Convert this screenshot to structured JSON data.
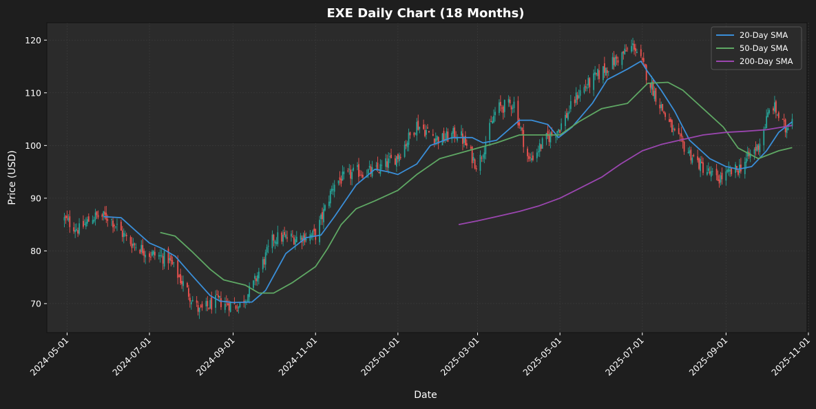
{
  "chart_data": {
    "type": "candlestick",
    "title": "EXE Daily Chart (18 Months)",
    "xlabel": "Date",
    "ylabel": "Price (USD)",
    "xlim": [
      "2024-04-16",
      "2025-10-31"
    ],
    "ylim": [
      64.5,
      123.3
    ],
    "yticks": [
      70,
      80,
      90,
      100,
      110,
      120
    ],
    "xticks": [
      "2024-05-01",
      "2024-07-01",
      "2024-09-01",
      "2024-11-01",
      "2025-01-01",
      "2025-03-01",
      "2025-05-01",
      "2025-07-01",
      "2025-09-01",
      "2025-11-01"
    ],
    "grid": true,
    "legend_position": "top-right",
    "colors": {
      "background": "#1e1e1e",
      "plot_background": "#2b2b2b",
      "grid": "#3a3a3a",
      "up": "#26a69a",
      "down": "#ef5350",
      "text": "#ffffff"
    },
    "candle_anchors": {
      "dates": [
        "2024-04-29",
        "2024-05-10",
        "2024-05-20",
        "2024-06-01",
        "2024-06-15",
        "2024-07-01",
        "2024-07-15",
        "2024-08-07",
        "2024-08-20",
        "2024-09-05",
        "2024-09-15",
        "2024-10-01",
        "2024-10-15",
        "2024-11-01",
        "2024-11-15",
        "2024-12-01",
        "2024-12-15",
        "2025-01-01",
        "2025-01-15",
        "2025-02-01",
        "2025-02-15",
        "2025-03-01",
        "2025-03-15",
        "2025-03-28",
        "2025-04-08",
        "2025-04-20",
        "2025-05-01",
        "2025-05-15",
        "2025-06-01",
        "2025-06-15",
        "2025-06-25",
        "2025-07-10",
        "2025-07-25",
        "2025-08-10",
        "2025-08-25",
        "2025-09-10",
        "2025-09-25",
        "2025-10-05",
        "2025-10-15",
        "2025-10-20"
      ],
      "close": [
        86,
        84,
        86.5,
        86.5,
        82,
        79.5,
        78.5,
        68.5,
        70.5,
        69.5,
        73,
        82.5,
        82.5,
        83,
        93,
        95,
        95,
        98,
        104,
        101,
        102.5,
        96,
        107,
        108,
        97,
        101,
        103.5,
        110,
        114,
        117,
        119,
        110,
        102,
        97,
        93.5,
        95.5,
        100,
        108,
        103,
        106
      ]
    },
    "series": [
      {
        "name": "20-Day SMA",
        "color": "#3a8fd9",
        "points": [
          [
            "2024-05-28",
            86.5
          ],
          [
            "2024-06-10",
            86.3
          ],
          [
            "2024-06-20",
            84
          ],
          [
            "2024-07-01",
            81.5
          ],
          [
            "2024-07-10",
            80.5
          ],
          [
            "2024-07-20",
            79
          ],
          [
            "2024-08-01",
            75.5
          ],
          [
            "2024-08-15",
            71.5
          ],
          [
            "2024-08-22",
            70.5
          ],
          [
            "2024-09-01",
            70.2
          ],
          [
            "2024-09-15",
            70.3
          ],
          [
            "2024-09-25",
            72.5
          ],
          [
            "2024-10-10",
            79.5
          ],
          [
            "2024-10-25",
            82.5
          ],
          [
            "2024-11-05",
            83
          ],
          [
            "2024-11-15",
            86.5
          ],
          [
            "2024-12-01",
            92.5
          ],
          [
            "2024-12-15",
            95.5
          ],
          [
            "2024-12-25",
            95
          ],
          [
            "2025-01-01",
            94.5
          ],
          [
            "2025-01-15",
            96.5
          ],
          [
            "2025-01-25",
            100
          ],
          [
            "2025-02-10",
            101.5
          ],
          [
            "2025-02-25",
            101.5
          ],
          [
            "2025-03-05",
            100.5
          ],
          [
            "2025-03-15",
            101
          ],
          [
            "2025-04-01",
            104.8
          ],
          [
            "2025-04-10",
            104.8
          ],
          [
            "2025-04-22",
            104
          ],
          [
            "2025-04-30",
            101.5
          ],
          [
            "2025-05-10",
            103.5
          ],
          [
            "2025-05-25",
            108
          ],
          [
            "2025-06-05",
            112.5
          ],
          [
            "2025-06-20",
            114.5
          ],
          [
            "2025-06-30",
            116
          ],
          [
            "2025-07-05",
            114
          ],
          [
            "2025-07-15",
            110.5
          ],
          [
            "2025-07-25",
            106.5
          ],
          [
            "2025-08-05",
            101
          ],
          [
            "2025-08-20",
            97.5
          ],
          [
            "2025-09-01",
            96
          ],
          [
            "2025-09-10",
            95.5
          ],
          [
            "2025-09-20",
            96
          ],
          [
            "2025-10-01",
            99
          ],
          [
            "2025-10-10",
            102.5
          ],
          [
            "2025-10-20",
            104.5
          ]
        ]
      },
      {
        "name": "50-Day SMA",
        "color": "#5fa864",
        "points": [
          [
            "2024-07-09",
            83.5
          ],
          [
            "2024-07-20",
            82.8
          ],
          [
            "2024-08-01",
            80
          ],
          [
            "2024-08-15",
            76.5
          ],
          [
            "2024-08-25",
            74.5
          ],
          [
            "2024-09-10",
            73.5
          ],
          [
            "2024-09-20",
            72
          ],
          [
            "2024-10-01",
            72
          ],
          [
            "2024-10-15",
            74
          ],
          [
            "2024-11-01",
            77
          ],
          [
            "2024-11-10",
            80.5
          ],
          [
            "2024-11-20",
            85
          ],
          [
            "2024-12-01",
            88
          ],
          [
            "2024-12-15",
            89.5
          ],
          [
            "2025-01-01",
            91.5
          ],
          [
            "2025-01-15",
            94.5
          ],
          [
            "2025-02-01",
            97.5
          ],
          [
            "2025-02-15",
            98.5
          ],
          [
            "2025-03-01",
            99.5
          ],
          [
            "2025-03-15",
            100.5
          ],
          [
            "2025-04-01",
            102
          ],
          [
            "2025-04-15",
            102
          ],
          [
            "2025-05-01",
            102
          ],
          [
            "2025-05-15",
            104.5
          ],
          [
            "2025-06-01",
            107
          ],
          [
            "2025-06-20",
            108
          ],
          [
            "2025-07-05",
            111.8
          ],
          [
            "2025-07-20",
            112
          ],
          [
            "2025-07-31",
            110.5
          ],
          [
            "2025-08-15",
            107
          ],
          [
            "2025-08-30",
            103.5
          ],
          [
            "2025-09-10",
            99.5
          ],
          [
            "2025-09-25",
            97.5
          ],
          [
            "2025-10-10",
            99
          ],
          [
            "2025-10-20",
            99.6
          ]
        ]
      },
      {
        "name": "200-Day SMA",
        "color": "#9b46b0",
        "points": [
          [
            "2025-02-15",
            85
          ],
          [
            "2025-03-01",
            85.7
          ],
          [
            "2025-03-15",
            86.5
          ],
          [
            "2025-04-01",
            87.5
          ],
          [
            "2025-04-15",
            88.5
          ],
          [
            "2025-05-01",
            90
          ],
          [
            "2025-05-15",
            91.8
          ],
          [
            "2025-06-01",
            94
          ],
          [
            "2025-06-15",
            96.5
          ],
          [
            "2025-07-01",
            99
          ],
          [
            "2025-07-15",
            100.2
          ],
          [
            "2025-08-01",
            101.2
          ],
          [
            "2025-08-15",
            102
          ],
          [
            "2025-09-01",
            102.5
          ],
          [
            "2025-09-15",
            102.7
          ],
          [
            "2025-10-01",
            103
          ],
          [
            "2025-10-20",
            103.8
          ]
        ]
      }
    ]
  }
}
